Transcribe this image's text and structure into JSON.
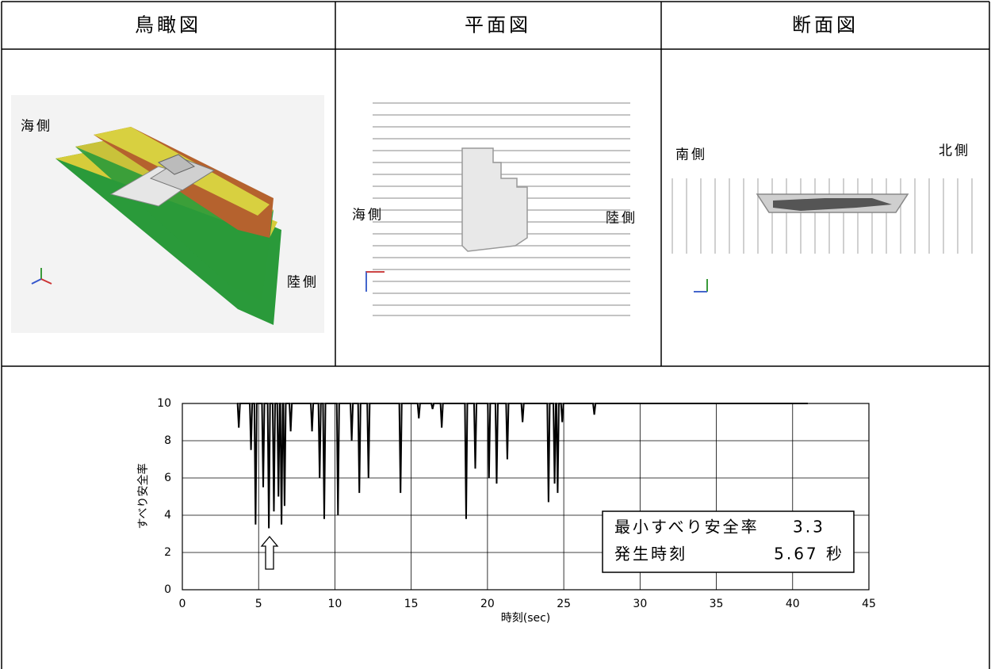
{
  "header": {
    "cells": [
      "鳥瞰図",
      "平面図",
      "断面図"
    ]
  },
  "panels": [
    {
      "labels": [
        "海側",
        "陸側"
      ]
    },
    {
      "labels": [
        "海側",
        "陸側"
      ]
    },
    {
      "labels": [
        "南側",
        "北側"
      ]
    }
  ],
  "chart_data": {
    "type": "line",
    "x_label": "時刻(sec)",
    "y_label": "すべり安全率",
    "x": [
      3.6,
      3.62,
      3.7,
      3.78,
      4.42,
      4.5,
      4.58,
      4.72,
      4.8,
      4.88,
      5.22,
      5.3,
      5.38,
      5.59,
      5.67,
      5.75,
      5.92,
      6.0,
      6.08,
      6.22,
      6.3,
      6.38,
      6.42,
      6.5,
      6.58,
      6.62,
      6.7,
      6.78,
      7.02,
      7.1,
      7.18,
      8.42,
      8.5,
      8.58,
      8.92,
      9.0,
      9.08,
      9.22,
      9.3,
      9.38,
      10.12,
      10.2,
      10.28,
      11.02,
      11.1,
      11.18,
      11.52,
      11.6,
      11.68,
      12.12,
      12.2,
      12.28,
      14.22,
      14.3,
      14.38,
      15.42,
      15.5,
      15.58,
      16.32,
      16.4,
      16.48,
      16.92,
      17.0,
      17.08,
      18.52,
      18.6,
      18.68,
      19.12,
      19.2,
      19.28,
      20.02,
      20.1,
      20.18,
      20.52,
      20.6,
      20.68,
      21.22,
      21.3,
      21.38,
      22.22,
      22.3,
      22.38,
      23.92,
      24.0,
      24.08,
      24.32,
      24.4,
      24.48,
      24.52,
      24.6,
      24.68,
      24.82,
      24.9,
      24.98,
      26.92,
      27.0,
      27.08,
      41
    ],
    "series": [
      {
        "color": "#000000",
        "values": [
          10,
          10,
          8.7,
          10,
          10,
          7.5,
          10,
          10,
          3.5,
          10,
          10,
          5.5,
          10,
          10,
          3.3,
          10,
          10,
          4.2,
          10,
          10,
          5.0,
          10,
          10,
          3.5,
          10,
          10,
          4.5,
          10,
          10,
          8.5,
          10,
          10,
          8.5,
          10,
          10,
          6.0,
          10,
          10,
          3.8,
          10,
          10,
          4.0,
          10,
          10,
          8.0,
          10,
          10,
          5.2,
          10,
          10,
          6.0,
          10,
          10,
          5.2,
          10,
          10,
          9.2,
          10,
          10,
          9.7,
          10,
          10,
          8.7,
          10,
          10,
          3.8,
          10,
          10,
          6.5,
          10,
          10,
          6.0,
          10,
          10,
          5.7,
          10,
          10,
          7.0,
          10,
          10,
          9.0,
          10,
          10,
          4.7,
          10,
          10,
          5.7,
          10,
          10,
          5.2,
          10,
          10,
          9.0,
          10,
          10,
          9.4,
          10,
          10
        ]
      }
    ],
    "xlim": [
      0,
      45
    ],
    "xticks": [
      0,
      5,
      10,
      15,
      20,
      25,
      30,
      35,
      40,
      45
    ],
    "ylim": [
      0,
      10
    ],
    "yticks": [
      0,
      2,
      4,
      6,
      8,
      10
    ],
    "grid": true,
    "annotation": [
      [
        "最小すべり安全率",
        "3.3"
      ],
      [
        "発生時刻",
        "5.67 秒"
      ]
    ]
  }
}
